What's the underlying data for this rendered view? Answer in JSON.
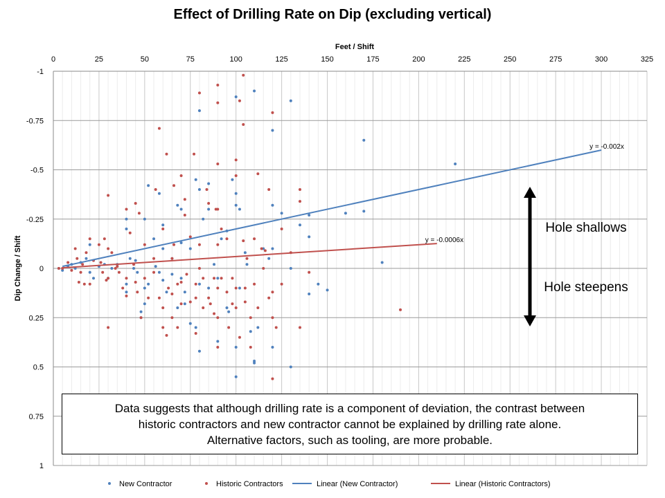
{
  "chart_data": {
    "type": "scatter",
    "title": "Effect of Drilling Rate on Dip (excluding vertical)",
    "xlabel": "Feet / Shift",
    "ylabel": "Dip Change / Shift",
    "xlim": [
      0,
      325
    ],
    "ylim": [
      -1,
      1
    ],
    "y_reversed": true,
    "x_axis_position": "top",
    "x_ticks": [
      0,
      25,
      50,
      75,
      100,
      125,
      150,
      175,
      200,
      225,
      250,
      275,
      300,
      325
    ],
    "y_ticks": [
      -1,
      -0.75,
      -0.5,
      -0.25,
      0,
      0.25,
      0.5,
      0.75,
      1
    ],
    "y_tick_labels": [
      "-1",
      "-0.75",
      "-0.5",
      "-0.25",
      "0",
      "0.25",
      "0.5",
      "0.75",
      "1"
    ],
    "grid": "major horizontal and vertical",
    "legend_position": "bottom",
    "series": [
      {
        "name": "New Contractor",
        "kind": "scatter",
        "color": "#4f81bd",
        "points": [
          [
            3,
            0
          ],
          [
            5,
            0.01
          ],
          [
            8,
            -0.01
          ],
          [
            10,
            -0.02
          ],
          [
            12,
            0
          ],
          [
            15,
            -0.03
          ],
          [
            18,
            -0.05
          ],
          [
            20,
            -0.12
          ],
          [
            20,
            0.02
          ],
          [
            22,
            0.05
          ],
          [
            25,
            -0.01
          ],
          [
            28,
            -0.02
          ],
          [
            30,
            0.05
          ],
          [
            32,
            0
          ],
          [
            35,
            -0.02
          ],
          [
            40,
            -0.25
          ],
          [
            40,
            -0.2
          ],
          [
            40,
            0.08
          ],
          [
            40,
            0.12
          ],
          [
            42,
            -0.05
          ],
          [
            44,
            0.0
          ],
          [
            45,
            -0.04
          ],
          [
            46,
            0.02
          ],
          [
            48,
            0.25
          ],
          [
            48,
            0.22
          ],
          [
            50,
            0.18
          ],
          [
            50,
            0.1
          ],
          [
            50,
            -0.25
          ],
          [
            52,
            -0.42
          ],
          [
            52,
            0.08
          ],
          [
            55,
            -0.15
          ],
          [
            56,
            -0.01
          ],
          [
            58,
            -0.38
          ],
          [
            58,
            0.02
          ],
          [
            60,
            -0.22
          ],
          [
            60,
            -0.1
          ],
          [
            60,
            0.06
          ],
          [
            62,
            0.12
          ],
          [
            65,
            -0.05
          ],
          [
            65,
            0.03
          ],
          [
            68,
            -0.32
          ],
          [
            68,
            0.2
          ],
          [
            70,
            -0.3
          ],
          [
            70,
            -0.13
          ],
          [
            70,
            0.05
          ],
          [
            72,
            0.12
          ],
          [
            72,
            0.18
          ],
          [
            75,
            -0.1
          ],
          [
            75,
            0.28
          ],
          [
            78,
            -0.45
          ],
          [
            78,
            0.3
          ],
          [
            80,
            -0.8
          ],
          [
            80,
            -0.4
          ],
          [
            80,
            0.42
          ],
          [
            80,
            0.08
          ],
          [
            82,
            -0.25
          ],
          [
            85,
            -0.43
          ],
          [
            85,
            -0.3
          ],
          [
            85,
            0.1
          ],
          [
            88,
            -0.02
          ],
          [
            90,
            0.37
          ],
          [
            90,
            0.05
          ],
          [
            92,
            -0.15
          ],
          [
            95,
            -0.19
          ],
          [
            95,
            0.2
          ],
          [
            96,
            0.22
          ],
          [
            98,
            -0.45
          ],
          [
            100,
            -0.87
          ],
          [
            100,
            -0.38
          ],
          [
            100,
            -0.32
          ],
          [
            100,
            0.4
          ],
          [
            100,
            0.55
          ],
          [
            102,
            -0.3
          ],
          [
            102,
            0.1
          ],
          [
            105,
            -0.08
          ],
          [
            106,
            -0.02
          ],
          [
            108,
            0.32
          ],
          [
            110,
            -0.9
          ],
          [
            110,
            0.47
          ],
          [
            110,
            0.48
          ],
          [
            112,
            0.3
          ],
          [
            115,
            -0.1
          ],
          [
            118,
            -0.05
          ],
          [
            120,
            -0.7
          ],
          [
            120,
            -0.32
          ],
          [
            120,
            -0.1
          ],
          [
            120,
            0.4
          ],
          [
            125,
            -0.28
          ],
          [
            130,
            -0.85
          ],
          [
            130,
            0.0
          ],
          [
            130,
            0.5
          ],
          [
            135,
            -0.22
          ],
          [
            140,
            -0.27
          ],
          [
            140,
            -0.16
          ],
          [
            140,
            0.13
          ],
          [
            145,
            0.08
          ],
          [
            150,
            0.11
          ],
          [
            160,
            -0.28
          ],
          [
            170,
            -0.65
          ],
          [
            170,
            -0.29
          ],
          [
            180,
            -0.03
          ],
          [
            220,
            -0.53
          ]
        ]
      },
      {
        "name": "Historic Contractors",
        "kind": "scatter",
        "color": "#c0504d",
        "points": [
          [
            3,
            0
          ],
          [
            5,
            0
          ],
          [
            8,
            -0.03
          ],
          [
            10,
            0.01
          ],
          [
            12,
            -0.1
          ],
          [
            13,
            -0.05
          ],
          [
            14,
            0.07
          ],
          [
            15,
            0.02
          ],
          [
            16,
            -0.02
          ],
          [
            17,
            0.08
          ],
          [
            18,
            -0.08
          ],
          [
            20,
            -0.15
          ],
          [
            20,
            0.08
          ],
          [
            22,
            -0.04
          ],
          [
            25,
            -0.12
          ],
          [
            26,
            -0.03
          ],
          [
            27,
            0.02
          ],
          [
            28,
            -0.15
          ],
          [
            29,
            0.06
          ],
          [
            30,
            -0.37
          ],
          [
            30,
            0.3
          ],
          [
            30,
            -0.1
          ],
          [
            30,
            0.05
          ],
          [
            32,
            -0.08
          ],
          [
            34,
            0.0
          ],
          [
            35,
            -0.01
          ],
          [
            36,
            0.02
          ],
          [
            38,
            0.1
          ],
          [
            40,
            -0.3
          ],
          [
            40,
            0.14
          ],
          [
            40,
            0.05
          ],
          [
            42,
            -0.18
          ],
          [
            44,
            -0.02
          ],
          [
            45,
            0.07
          ],
          [
            45,
            -0.33
          ],
          [
            46,
            0.12
          ],
          [
            47,
            -0.28
          ],
          [
            48,
            0.25
          ],
          [
            50,
            0.05
          ],
          [
            50,
            -0.12
          ],
          [
            52,
            0.15
          ],
          [
            55,
            -0.05
          ],
          [
            55,
            0.02
          ],
          [
            56,
            -0.4
          ],
          [
            58,
            -0.71
          ],
          [
            58,
            0.15
          ],
          [
            60,
            0.3
          ],
          [
            60,
            0.2
          ],
          [
            60,
            -0.2
          ],
          [
            62,
            -0.58
          ],
          [
            62,
            0.34
          ],
          [
            63,
            0.1
          ],
          [
            65,
            -0.05
          ],
          [
            65,
            0.13
          ],
          [
            65,
            0.25
          ],
          [
            66,
            -0.42
          ],
          [
            66,
            -0.12
          ],
          [
            68,
            0.08
          ],
          [
            68,
            0.3
          ],
          [
            70,
            -0.47
          ],
          [
            70,
            0.18
          ],
          [
            70,
            0.07
          ],
          [
            72,
            -0.35
          ],
          [
            72,
            -0.27
          ],
          [
            73,
            0.03
          ],
          [
            75,
            0.17
          ],
          [
            75,
            -0.16
          ],
          [
            77,
            -0.58
          ],
          [
            78,
            0.08
          ],
          [
            78,
            0.15
          ],
          [
            78,
            0.33
          ],
          [
            80,
            -0.89
          ],
          [
            80,
            -0.12
          ],
          [
            80,
            0.0
          ],
          [
            82,
            0.2
          ],
          [
            82,
            0.05
          ],
          [
            84,
            -0.4
          ],
          [
            85,
            -0.33
          ],
          [
            85,
            0.15
          ],
          [
            86,
            0.18
          ],
          [
            88,
            0.05
          ],
          [
            88,
            0.23
          ],
          [
            89,
            -0.3
          ],
          [
            90,
            -0.93
          ],
          [
            90,
            -0.84
          ],
          [
            90,
            -0.53
          ],
          [
            90,
            -0.3
          ],
          [
            90,
            -0.12
          ],
          [
            90,
            0.1
          ],
          [
            90,
            0.25
          ],
          [
            90,
            0.4
          ],
          [
            92,
            -0.2
          ],
          [
            92,
            0.05
          ],
          [
            95,
            -0.15
          ],
          [
            95,
            0.12
          ],
          [
            96,
            0.3
          ],
          [
            98,
            0.05
          ],
          [
            98,
            0.18
          ],
          [
            100,
            -0.55
          ],
          [
            100,
            -0.47
          ],
          [
            100,
            0.1
          ],
          [
            100,
            0.2
          ],
          [
            102,
            -0.85
          ],
          [
            102,
            0.35
          ],
          [
            104,
            -0.98
          ],
          [
            104,
            -0.73
          ],
          [
            104,
            -0.14
          ],
          [
            105,
            0.1
          ],
          [
            105,
            0.17
          ],
          [
            106,
            -0.05
          ],
          [
            108,
            0.25
          ],
          [
            108,
            0.4
          ],
          [
            110,
            -0.15
          ],
          [
            110,
            0.08
          ],
          [
            112,
            0.2
          ],
          [
            112,
            -0.48
          ],
          [
            114,
            -0.1
          ],
          [
            115,
            0.0
          ],
          [
            116,
            -0.09
          ],
          [
            118,
            0.15
          ],
          [
            118,
            -0.4
          ],
          [
            120,
            -0.79
          ],
          [
            120,
            0.25
          ],
          [
            120,
            0.56
          ],
          [
            120,
            0.12
          ],
          [
            122,
            0.3
          ],
          [
            125,
            -0.2
          ],
          [
            125,
            0.08
          ],
          [
            130,
            -0.08
          ],
          [
            135,
            -0.4
          ],
          [
            135,
            -0.34
          ],
          [
            135,
            0.3
          ],
          [
            140,
            0.02
          ],
          [
            190,
            0.21
          ]
        ]
      },
      {
        "name": "Linear (New Contractor)",
        "kind": "trendline",
        "color": "#4f81bd",
        "x_range": [
          5,
          300
        ],
        "equation": "y = -0.002x",
        "slope": -0.002,
        "intercept": 0
      },
      {
        "name": "Linear (Historic Contractors)",
        "kind": "trendline",
        "color": "#c0504d",
        "x_range": [
          5,
          210
        ],
        "equation": "y = -0.0006x",
        "slope": -0.0006,
        "intercept": 0
      }
    ],
    "annotations": {
      "arrow_top_label": "Hole shallows",
      "arrow_bottom_label": "Hole steepens",
      "note": [
        "Data suggests that although drilling rate is a component of deviation, the contrast between",
        "historic contractors and new contractor cannot be explained by drilling rate alone.",
        "Alternative factors, such as tooling, are more probable."
      ]
    }
  }
}
